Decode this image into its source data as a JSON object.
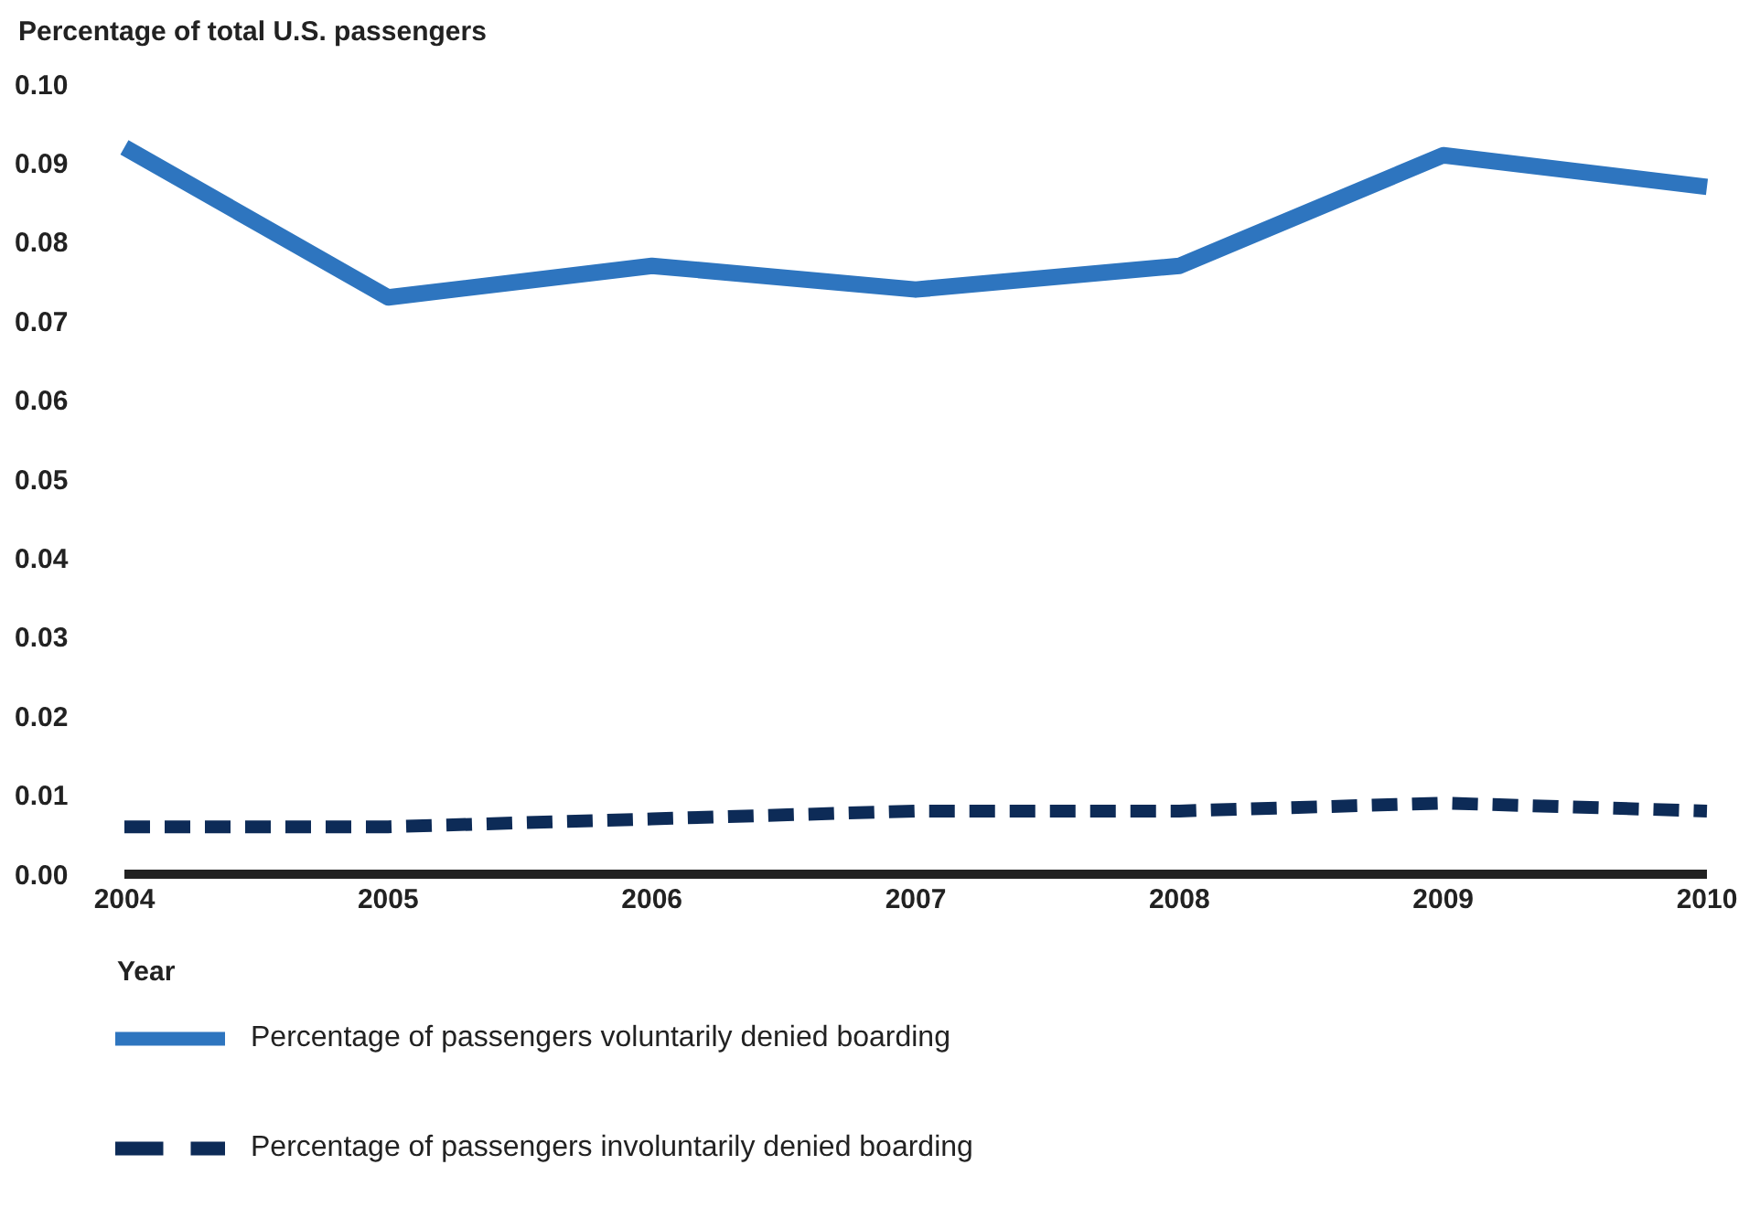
{
  "chart_data": {
    "type": "line",
    "ylabel": "Percentage of total U.S. passengers",
    "xlabel": "Year",
    "categories": [
      "2004",
      "2005",
      "2006",
      "2007",
      "2008",
      "2009",
      "2010"
    ],
    "series": [
      {
        "name": "Percentage of passengers voluntarily denied boarding",
        "color": "#2e75bf",
        "line_style": "solid",
        "values": [
          0.092,
          0.073,
          0.077,
          0.074,
          0.077,
          0.091,
          0.087
        ]
      },
      {
        "name": "Percentage of passengers involuntarily denied boarding",
        "color": "#0d2b57",
        "line_style": "dashed",
        "values": [
          0.006,
          0.006,
          0.007,
          0.008,
          0.008,
          0.009,
          0.008
        ]
      }
    ],
    "ylim": [
      0,
      0.1
    ],
    "yticks": [
      {
        "value": 0,
        "label": "0.00"
      },
      {
        "value": 0.01,
        "label": "0.01"
      },
      {
        "value": 0.02,
        "label": "0.02"
      },
      {
        "value": 0.03,
        "label": "0.03"
      },
      {
        "value": 0.04,
        "label": "0.04"
      },
      {
        "value": 0.05,
        "label": "0.05"
      },
      {
        "value": 0.06,
        "label": "0.06"
      },
      {
        "value": 0.07,
        "label": "0.07"
      },
      {
        "value": 0.08,
        "label": "0.08"
      },
      {
        "value": 0.09,
        "label": "0.09"
      },
      {
        "value": 0.1,
        "label": "0.10"
      }
    ],
    "grid": false,
    "legend": "bottom left",
    "marker": "none"
  }
}
